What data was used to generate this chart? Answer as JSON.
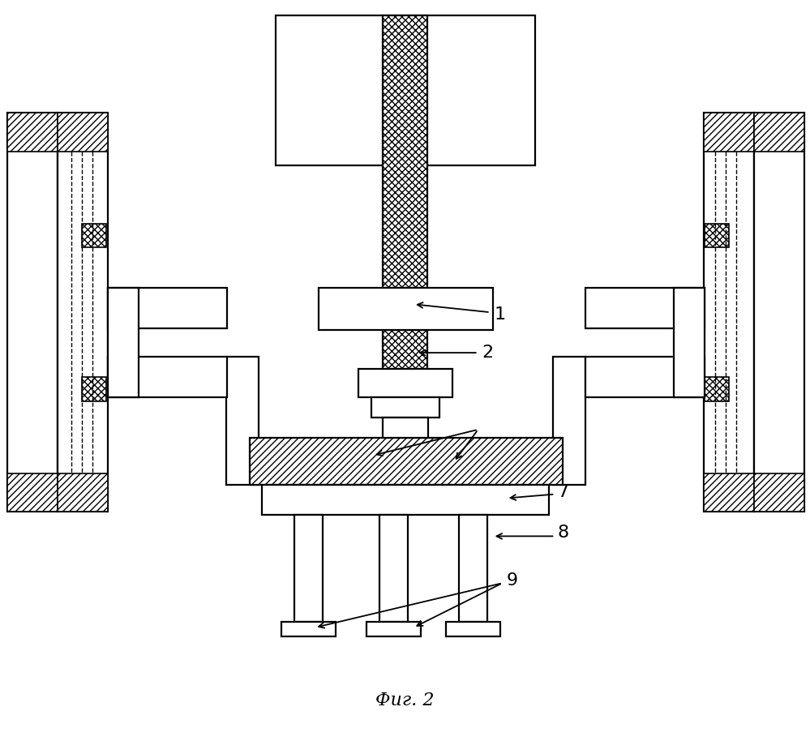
{
  "bg_color": "#ffffff",
  "line_color": "#000000",
  "caption": "Фиг. 2",
  "fig_width": 9.99,
  "fig_height": 9.14,
  "dpi": 100
}
